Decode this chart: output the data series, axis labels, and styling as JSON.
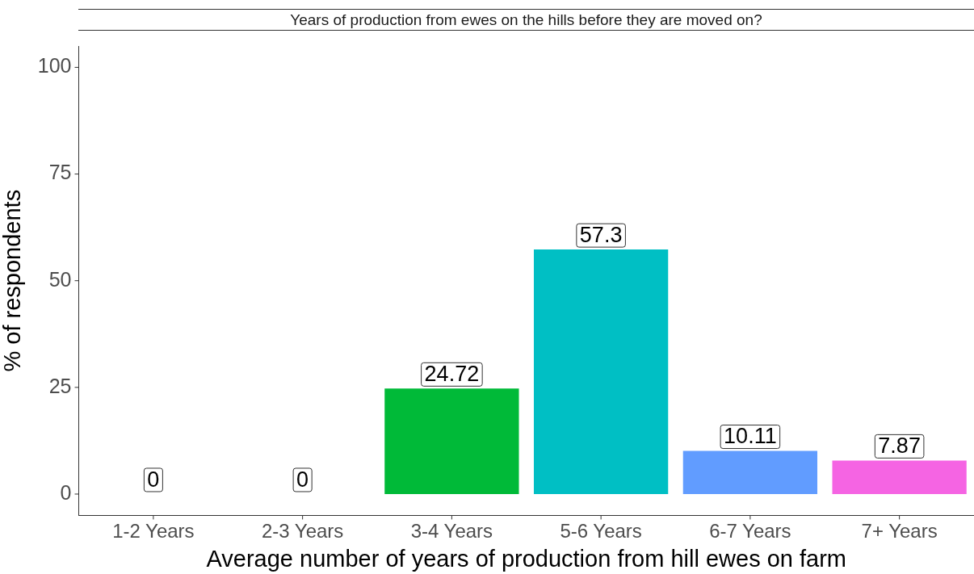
{
  "chart_data": {
    "type": "bar",
    "title": "Years of production from ewes on the hills before they are moved on?",
    "xlabel": "Average number of years of production from hill ewes on farm",
    "ylabel": "% of respondents",
    "categories": [
      "1-2 Years",
      "2-3 Years",
      "3-4 Years",
      "5-6 Years",
      "6-7 Years",
      "7+ Years"
    ],
    "values": [
      0,
      0,
      24.72,
      57.3,
      10.11,
      7.87
    ],
    "colors": [
      "#f8766d",
      "#b79f00",
      "#00ba38",
      "#00bfc4",
      "#619cff",
      "#f564e3"
    ],
    "ylim": [
      -5,
      105
    ],
    "yticks": [
      0,
      25,
      50,
      75,
      100
    ],
    "grid": false,
    "legend": false,
    "data_labels": true
  }
}
